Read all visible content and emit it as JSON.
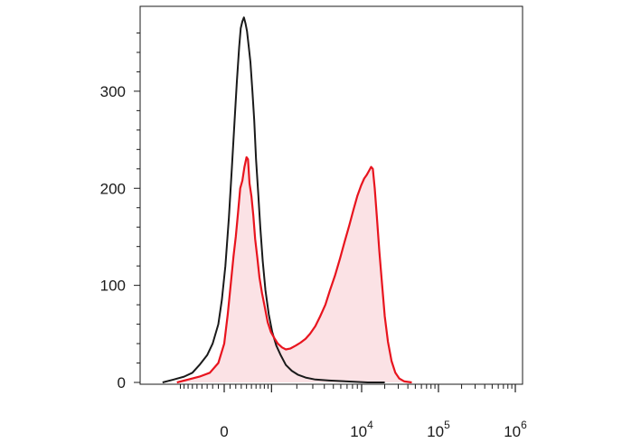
{
  "chart_data": {
    "type": "area",
    "title": "",
    "xlabel": "",
    "ylabel": "",
    "x_scale": "biexponential",
    "ylim": [
      0,
      380
    ],
    "yticks": [
      {
        "value": 0,
        "label": "0"
      },
      {
        "value": 100,
        "label": "100"
      },
      {
        "value": 200,
        "label": "200"
      },
      {
        "value": 300,
        "label": "300"
      }
    ],
    "xticks": [
      {
        "value": 0,
        "base": "0",
        "exp": ""
      },
      {
        "value": 10000,
        "base": "10",
        "exp": "4"
      },
      {
        "value": 100000,
        "base": "10",
        "exp": "5"
      },
      {
        "value": 1000000,
        "base": "10",
        "exp": "6"
      }
    ],
    "grid": false,
    "legend": "none",
    "series": [
      {
        "color": "#1a1a1a",
        "fill": "none",
        "points": [
          [
            -1500,
            0
          ],
          [
            -1100,
            3
          ],
          [
            -800,
            6
          ],
          [
            -600,
            10
          ],
          [
            -450,
            18
          ],
          [
            -300,
            28
          ],
          [
            -200,
            40
          ],
          [
            -100,
            60
          ],
          [
            -40,
            85
          ],
          [
            20,
            120
          ],
          [
            80,
            170
          ],
          [
            130,
            220
          ],
          [
            180,
            270
          ],
          [
            220,
            310
          ],
          [
            260,
            345
          ],
          [
            290,
            365
          ],
          [
            320,
            372
          ],
          [
            350,
            376
          ],
          [
            380,
            370
          ],
          [
            410,
            362
          ],
          [
            440,
            348
          ],
          [
            480,
            330
          ],
          [
            520,
            300
          ],
          [
            560,
            270
          ],
          [
            600,
            230
          ],
          [
            650,
            195
          ],
          [
            700,
            160
          ],
          [
            760,
            125
          ],
          [
            830,
            95
          ],
          [
            920,
            70
          ],
          [
            1020,
            52
          ],
          [
            1150,
            38
          ],
          [
            1300,
            28
          ],
          [
            1500,
            18
          ],
          [
            1750,
            12
          ],
          [
            2050,
            8
          ],
          [
            2500,
            5
          ],
          [
            3200,
            3
          ],
          [
            4500,
            2
          ],
          [
            7000,
            1
          ],
          [
            12000,
            0
          ],
          [
            20000,
            0
          ]
        ]
      },
      {
        "color": "#e8141e",
        "fill": "#fbe2e5",
        "points": [
          [
            -1000,
            0
          ],
          [
            -700,
            3
          ],
          [
            -450,
            6
          ],
          [
            -250,
            10
          ],
          [
            -100,
            20
          ],
          [
            0,
            40
          ],
          [
            60,
            70
          ],
          [
            110,
            100
          ],
          [
            160,
            130
          ],
          [
            200,
            150
          ],
          [
            240,
            175
          ],
          [
            280,
            200
          ],
          [
            320,
            208
          ],
          [
            360,
            222
          ],
          [
            400,
            232
          ],
          [
            430,
            230
          ],
          [
            460,
            205
          ],
          [
            500,
            192
          ],
          [
            540,
            172
          ],
          [
            580,
            148
          ],
          [
            630,
            128
          ],
          [
            680,
            108
          ],
          [
            740,
            92
          ],
          [
            810,
            78
          ],
          [
            890,
            62
          ],
          [
            980,
            52
          ],
          [
            1080,
            46
          ],
          [
            1200,
            40
          ],
          [
            1350,
            36
          ],
          [
            1500,
            34
          ],
          [
            1700,
            35
          ],
          [
            1950,
            38
          ],
          [
            2200,
            41
          ],
          [
            2500,
            45
          ],
          [
            2800,
            50
          ],
          [
            3200,
            58
          ],
          [
            3600,
            68
          ],
          [
            4100,
            80
          ],
          [
            4600,
            95
          ],
          [
            5200,
            110
          ],
          [
            5900,
            128
          ],
          [
            6600,
            145
          ],
          [
            7400,
            162
          ],
          [
            8200,
            178
          ],
          [
            9000,
            192
          ],
          [
            9900,
            203
          ],
          [
            10800,
            210
          ],
          [
            11700,
            214
          ],
          [
            12500,
            218
          ],
          [
            13300,
            222
          ],
          [
            14000,
            220
          ],
          [
            14800,
            200
          ],
          [
            15800,
            170
          ],
          [
            17000,
            135
          ],
          [
            18500,
            100
          ],
          [
            20000,
            68
          ],
          [
            22000,
            42
          ],
          [
            24500,
            22
          ],
          [
            27500,
            10
          ],
          [
            31000,
            4
          ],
          [
            36000,
            1
          ],
          [
            45000,
            0
          ]
        ]
      }
    ]
  }
}
